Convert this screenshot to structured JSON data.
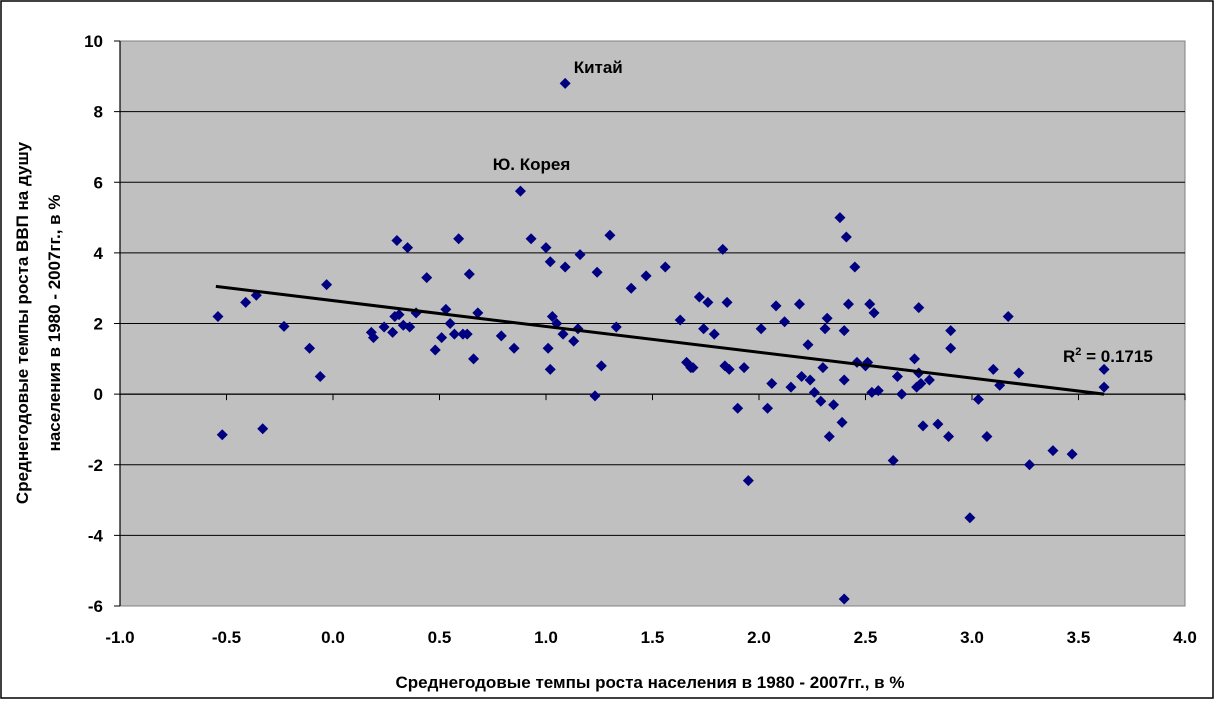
{
  "chart_data": {
    "type": "scatter",
    "title": "",
    "xlabel": "Среднегодовые темпы роста населения в 1980 - 2007гг., в %",
    "ylabel_lines": [
      "Среднегодовые темпы роста  ВВП на душу",
      "населения в 1980 - 2007гг., в %"
    ],
    "xlim": [
      -1.0,
      4.0
    ],
    "ylim": [
      -6,
      10
    ],
    "x_ticks": [
      "-1.0",
      "-0.5",
      "0.0",
      "0.5",
      "1.0",
      "1.5",
      "2.0",
      "2.5",
      "3.0",
      "3.5",
      "4.0"
    ],
    "y_ticks": [
      "-6",
      "-4",
      "-2",
      "0",
      "2",
      "4",
      "6",
      "8",
      "10"
    ],
    "grid": "horizontal",
    "legend": "none",
    "colors": {
      "plot_background": "#C0C0C0",
      "marker": "#000080",
      "trendline": "#000000"
    },
    "trendline": {
      "x": [
        -0.55,
        3.62
      ],
      "y": [
        3.05,
        0.0
      ]
    },
    "r2_label": {
      "prefix": "R",
      "sup": "2",
      "suffix": " = 0.1715"
    },
    "annotations": [
      {
        "text": "Китай",
        "x": 1.13,
        "y": 9.1
      },
      {
        "text": "Ю. Корея",
        "x": 0.75,
        "y": 6.35
      }
    ],
    "points": [
      [
        1.09,
        8.8
      ],
      [
        0.88,
        5.75
      ],
      [
        -0.54,
        2.2
      ],
      [
        -0.52,
        -1.15
      ],
      [
        -0.41,
        2.6
      ],
      [
        -0.36,
        2.8
      ],
      [
        -0.33,
        -0.98
      ],
      [
        -0.23,
        1.92
      ],
      [
        -0.11,
        1.3
      ],
      [
        -0.06,
        0.5
      ],
      [
        -0.03,
        3.1
      ],
      [
        0.18,
        1.75
      ],
      [
        0.19,
        1.6
      ],
      [
        0.24,
        1.9
      ],
      [
        0.28,
        1.75
      ],
      [
        0.29,
        2.2
      ],
      [
        0.3,
        4.35
      ],
      [
        0.31,
        2.25
      ],
      [
        0.33,
        1.95
      ],
      [
        0.35,
        4.15
      ],
      [
        0.36,
        1.9
      ],
      [
        0.39,
        2.3
      ],
      [
        0.44,
        3.3
      ],
      [
        0.48,
        1.25
      ],
      [
        0.51,
        1.6
      ],
      [
        0.53,
        2.4
      ],
      [
        0.55,
        2.0
      ],
      [
        0.57,
        1.7
      ],
      [
        0.59,
        4.4
      ],
      [
        0.61,
        1.7
      ],
      [
        0.63,
        1.7
      ],
      [
        0.64,
        3.4
      ],
      [
        0.66,
        1.0
      ],
      [
        0.68,
        2.3
      ],
      [
        0.79,
        1.65
      ],
      [
        0.85,
        1.3
      ],
      [
        0.93,
        4.4
      ],
      [
        1.0,
        4.15
      ],
      [
        1.01,
        1.3
      ],
      [
        1.02,
        3.75
      ],
      [
        1.02,
        0.7
      ],
      [
        1.03,
        2.2
      ],
      [
        1.05,
        2.0
      ],
      [
        1.08,
        1.7
      ],
      [
        1.09,
        3.6
      ],
      [
        1.13,
        1.5
      ],
      [
        1.15,
        1.85
      ],
      [
        1.16,
        3.95
      ],
      [
        1.23,
        -0.05
      ],
      [
        1.24,
        3.45
      ],
      [
        1.26,
        0.8
      ],
      [
        1.3,
        4.5
      ],
      [
        1.33,
        1.9
      ],
      [
        1.4,
        3.0
      ],
      [
        1.47,
        3.35
      ],
      [
        1.56,
        3.6
      ],
      [
        1.63,
        2.1
      ],
      [
        1.66,
        0.9
      ],
      [
        1.68,
        0.75
      ],
      [
        1.69,
        0.75
      ],
      [
        1.72,
        2.75
      ],
      [
        1.74,
        1.85
      ],
      [
        1.76,
        2.6
      ],
      [
        1.79,
        1.7
      ],
      [
        1.83,
        4.1
      ],
      [
        1.84,
        0.8
      ],
      [
        1.85,
        2.6
      ],
      [
        1.86,
        0.7
      ],
      [
        1.9,
        -0.4
      ],
      [
        1.93,
        0.75
      ],
      [
        1.95,
        -2.45
      ],
      [
        2.01,
        1.85
      ],
      [
        2.04,
        -0.4
      ],
      [
        2.06,
        0.3
      ],
      [
        2.08,
        2.5
      ],
      [
        2.12,
        2.05
      ],
      [
        2.15,
        0.2
      ],
      [
        2.19,
        2.55
      ],
      [
        2.2,
        0.5
      ],
      [
        2.23,
        1.4
      ],
      [
        2.24,
        0.4
      ],
      [
        2.26,
        0.05
      ],
      [
        2.29,
        -0.2
      ],
      [
        2.3,
        0.75
      ],
      [
        2.31,
        1.85
      ],
      [
        2.32,
        2.15
      ],
      [
        2.33,
        -1.2
      ],
      [
        2.35,
        -0.3
      ],
      [
        2.38,
        5.0
      ],
      [
        2.39,
        -0.8
      ],
      [
        2.4,
        1.8
      ],
      [
        2.4,
        0.4
      ],
      [
        2.41,
        4.45
      ],
      [
        2.4,
        -5.8
      ],
      [
        2.42,
        2.55
      ],
      [
        2.45,
        3.6
      ],
      [
        2.46,
        0.9
      ],
      [
        2.5,
        0.8
      ],
      [
        2.51,
        0.9
      ],
      [
        2.52,
        2.55
      ],
      [
        2.53,
        0.05
      ],
      [
        2.54,
        2.3
      ],
      [
        2.56,
        0.1
      ],
      [
        2.63,
        -1.88
      ],
      [
        2.65,
        0.5
      ],
      [
        2.67,
        0.0
      ],
      [
        2.73,
        1.0
      ],
      [
        2.74,
        0.2
      ],
      [
        2.75,
        0.6
      ],
      [
        2.75,
        2.45
      ],
      [
        2.76,
        0.3
      ],
      [
        2.77,
        -0.9
      ],
      [
        2.8,
        0.4
      ],
      [
        2.84,
        -0.85
      ],
      [
        2.89,
        -1.2
      ],
      [
        2.9,
        1.8
      ],
      [
        2.9,
        1.3
      ],
      [
        2.99,
        -3.5
      ],
      [
        3.03,
        -0.15
      ],
      [
        3.07,
        -1.2
      ],
      [
        3.1,
        0.7
      ],
      [
        3.13,
        0.25
      ],
      [
        3.17,
        2.2
      ],
      [
        3.22,
        0.6
      ],
      [
        3.27,
        -2.0
      ],
      [
        3.38,
        -1.6
      ],
      [
        3.47,
        -1.7
      ],
      [
        3.62,
        0.7
      ],
      [
        3.62,
        0.2
      ]
    ]
  }
}
